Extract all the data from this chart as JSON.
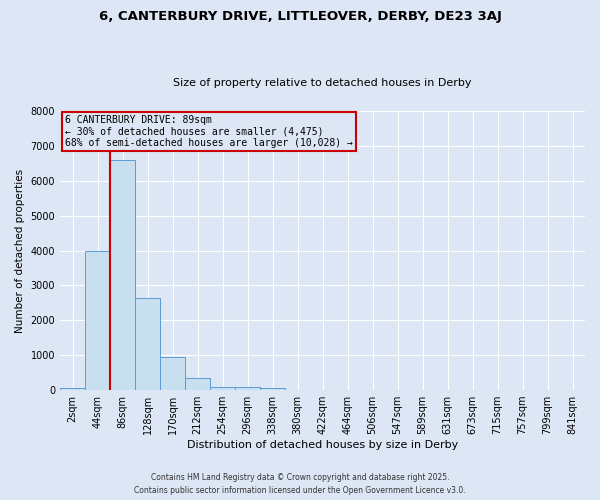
{
  "title1": "6, CANTERBURY DRIVE, LITTLEOVER, DERBY, DE23 3AJ",
  "title2": "Size of property relative to detached houses in Derby",
  "xlabel": "Distribution of detached houses by size in Derby",
  "ylabel": "Number of detached properties",
  "bin_labels": [
    "2sqm",
    "44sqm",
    "86sqm",
    "128sqm",
    "170sqm",
    "212sqm",
    "254sqm",
    "296sqm",
    "338sqm",
    "380sqm",
    "422sqm",
    "464sqm",
    "506sqm",
    "547sqm",
    "589sqm",
    "631sqm",
    "673sqm",
    "715sqm",
    "757sqm",
    "799sqm",
    "841sqm"
  ],
  "bar_values": [
    50,
    4000,
    6600,
    2650,
    950,
    350,
    100,
    80,
    50,
    5,
    0,
    0,
    0,
    0,
    0,
    0,
    0,
    0,
    0,
    0,
    0
  ],
  "bar_color": "#c8dff0",
  "bar_edge_color": "#5b9bd5",
  "property_line_color": "#cc0000",
  "property_line_bin": 2,
  "annotation_text": "6 CANTERBURY DRIVE: 89sqm\n← 30% of detached houses are smaller (4,475)\n68% of semi-detached houses are larger (10,028) →",
  "annotation_box_edgecolor": "#cc0000",
  "ylim": [
    0,
    8000
  ],
  "yticks": [
    0,
    1000,
    2000,
    3000,
    4000,
    5000,
    6000,
    7000,
    8000
  ],
  "footer1": "Contains HM Land Registry data © Crown copyright and database right 2025.",
  "footer2": "Contains public sector information licensed under the Open Government Licence v3.0.",
  "bg_color": "#dce6f5",
  "grid_color": "#ffffff"
}
